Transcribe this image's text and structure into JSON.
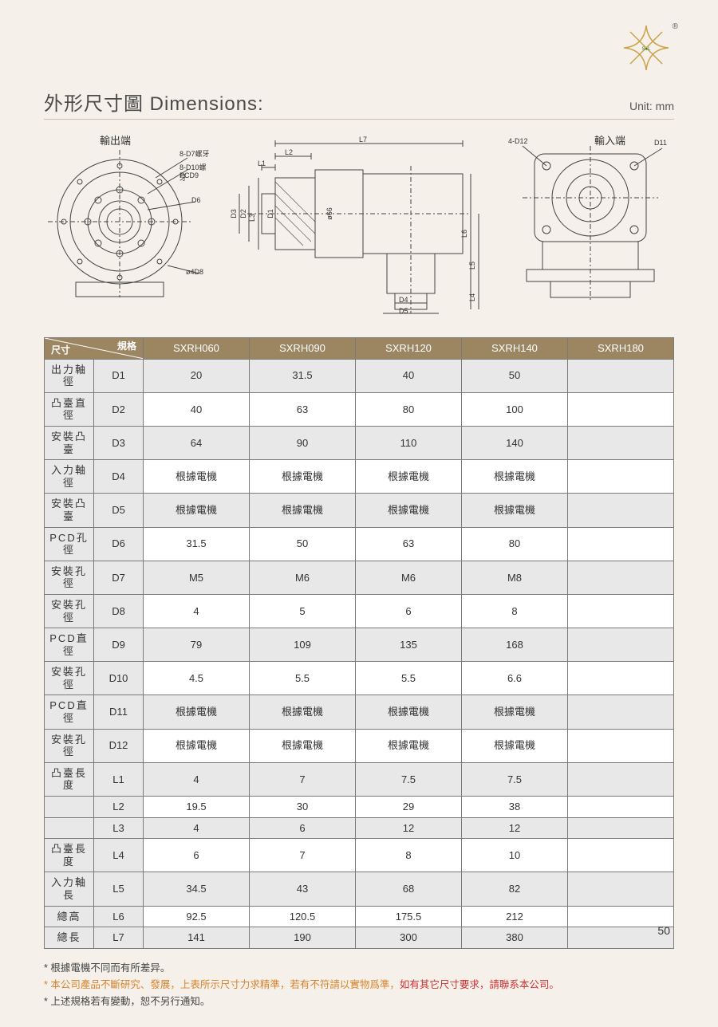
{
  "title": "外形尺寸圖 Dimensions:",
  "unit": "Unit: mm",
  "reg": "®",
  "drawings": {
    "left_label": "輸出端",
    "right_label": "輸入端",
    "left_callouts": {
      "a1": "8-D7螺牙",
      "a2": "8-D10螺牙",
      "a3": "PCD9",
      "a4": "D6",
      "a5": "ø4D8"
    },
    "mid_callouts": {
      "L7": "L7",
      "L1": "L1",
      "L2": "L2",
      "L3": "L3",
      "L4": "L4",
      "L5": "L5",
      "L6": "L6",
      "D1": "D1",
      "D2": "D2",
      "D3": "D3",
      "D4": "D4",
      "D5": "D5",
      "phi": "ø66"
    },
    "right_callouts": {
      "a1": "4-D12",
      "a2": "D11"
    }
  },
  "table": {
    "corner_top": "規格",
    "corner_bottom": "尺寸",
    "models": [
      "SXRH060",
      "SXRH090",
      "SXRH120",
      "SXRH140",
      "SXRH180"
    ],
    "rows": [
      {
        "name": "出力軸徑",
        "code": "D1",
        "vals": [
          "20",
          "31.5",
          "40",
          "50",
          ""
        ]
      },
      {
        "name": "凸臺直徑",
        "code": "D2",
        "vals": [
          "40",
          "63",
          "80",
          "100",
          ""
        ]
      },
      {
        "name": "安裝凸臺",
        "code": "D3",
        "vals": [
          "64",
          "90",
          "110",
          "140",
          ""
        ]
      },
      {
        "name": "入力軸徑",
        "code": "D4",
        "vals": [
          "根據電機",
          "根據電機",
          "根據電機",
          "根據電機",
          ""
        ]
      },
      {
        "name": "安裝凸臺",
        "code": "D5",
        "vals": [
          "根據電機",
          "根據電機",
          "根據電機",
          "根據電機",
          ""
        ]
      },
      {
        "name": "PCD孔徑",
        "code": "D6",
        "vals": [
          "31.5",
          "50",
          "63",
          "80",
          ""
        ]
      },
      {
        "name": "安裝孔徑",
        "code": "D7",
        "vals": [
          "M5",
          "M6",
          "M6",
          "M8",
          ""
        ]
      },
      {
        "name": "安裝孔徑",
        "code": "D8",
        "vals": [
          "4",
          "5",
          "6",
          "8",
          ""
        ]
      },
      {
        "name": "PCD直徑",
        "code": "D9",
        "vals": [
          "79",
          "109",
          "135",
          "168",
          ""
        ]
      },
      {
        "name": "安裝孔徑",
        "code": "D10",
        "vals": [
          "4.5",
          "5.5",
          "5.5",
          "6.6",
          ""
        ]
      },
      {
        "name": "PCD直徑",
        "code": "D11",
        "vals": [
          "根據電機",
          "根據電機",
          "根據電機",
          "根據電機",
          ""
        ]
      },
      {
        "name": "安裝孔徑",
        "code": "D12",
        "vals": [
          "根據電機",
          "根據電機",
          "根據電機",
          "根據電機",
          ""
        ]
      },
      {
        "name": "凸臺長度",
        "code": "L1",
        "vals": [
          "4",
          "7",
          "7.5",
          "7.5",
          ""
        ]
      },
      {
        "name": "",
        "code": "L2",
        "vals": [
          "19.5",
          "30",
          "29",
          "38",
          ""
        ]
      },
      {
        "name": "",
        "code": "L3",
        "vals": [
          "4",
          "6",
          "12",
          "12",
          ""
        ]
      },
      {
        "name": "凸臺長度",
        "code": "L4",
        "vals": [
          "6",
          "7",
          "8",
          "10",
          ""
        ]
      },
      {
        "name": "入力軸長",
        "code": "L5",
        "vals": [
          "34.5",
          "43",
          "68",
          "82",
          ""
        ]
      },
      {
        "name": "總高",
        "code": "L6",
        "vals": [
          "92.5",
          "120.5",
          "175.5",
          "212",
          ""
        ]
      },
      {
        "name": "總長",
        "code": "L7",
        "vals": [
          "141",
          "190",
          "300",
          "380",
          ""
        ]
      }
    ]
  },
  "footnotes": {
    "f1": "* 根據電機不同而有所差异。",
    "f2_orange": "* 本公司產品不斷研究、發展，上表所示尺寸力求精準，若有不符請以實物爲準，",
    "f2_red": "如有其它尺寸要求，請聯系本公司。",
    "f3": "* 上述規格若有變動，恕不另行通知。"
  },
  "page_number": "50",
  "colors": {
    "header_bg": "#9c8561",
    "page_bg": "#f5f1ea",
    "border": "#7a7a7a",
    "shade": "#e8e8e8",
    "orange": "#d9822b",
    "red": "#d03030"
  }
}
